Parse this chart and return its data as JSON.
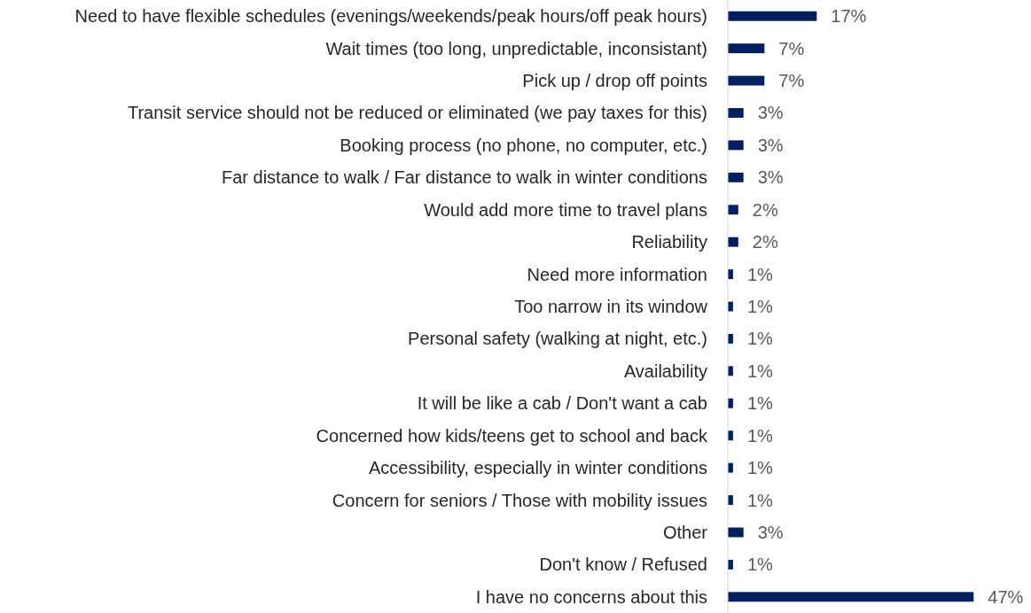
{
  "chart_data": {
    "type": "bar",
    "orientation": "horizontal",
    "categories": [
      "Need to have flexible schedules (evenings/weekends/peak hours/off peak hours)",
      "Wait times (too long, unpredictable, inconsistant)",
      "Pick up / drop off points",
      "Transit service should not be reduced or eliminated (we pay taxes for this)",
      "Booking process (no phone, no computer, etc.)",
      "Far distance to walk / Far distance to walk in winter conditions",
      "Would add more time to travel plans",
      "Reliability",
      "Need more information",
      "Too narrow in its window",
      "Personal safety (walking at night, etc.)",
      "Availability",
      "It will be like a cab / Don't want a cab",
      "Concerned how kids/teens get to school and back",
      "Accessibility, especially in winter conditions",
      "Concern for seniors / Those with mobility issues",
      "Other",
      "Don't know / Refused",
      "I have no concerns about this"
    ],
    "values": [
      17,
      7,
      7,
      3,
      3,
      3,
      2,
      2,
      1,
      1,
      1,
      1,
      1,
      1,
      1,
      1,
      3,
      1,
      47
    ],
    "value_labels": [
      "17%",
      "7%",
      "7%",
      "3%",
      "3%",
      "3%",
      "2%",
      "2%",
      "1%",
      "1%",
      "1%",
      "1%",
      "1%",
      "1%",
      "1%",
      "1%",
      "3%",
      "1%",
      "47%"
    ],
    "color": "#002060"
  }
}
